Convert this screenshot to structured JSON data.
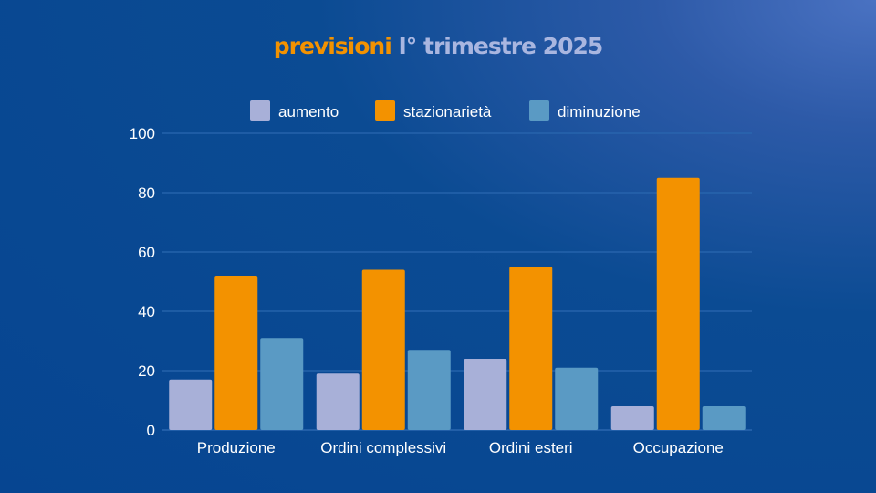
{
  "title": {
    "highlight": "previsioni",
    "rest": "I° trimestre 2025"
  },
  "colors": {
    "aumento": "#a8b0d8",
    "stazionarieta": "#f39200",
    "diminuzione": "#5a9ac4",
    "grid": "#2a67b0",
    "text": "#ffffff"
  },
  "chart_data": {
    "type": "bar",
    "title": "previsioni I° trimestre 2025",
    "categories": [
      "Produzione",
      "Ordini complessivi",
      "Ordini esteri",
      "Occupazione"
    ],
    "series": [
      {
        "name": "aumento",
        "values": [
          17,
          19,
          24,
          8
        ]
      },
      {
        "name": "stazionarietà",
        "values": [
          52,
          54,
          55,
          85
        ]
      },
      {
        "name": "diminuzione",
        "values": [
          31,
          27,
          21,
          8
        ]
      }
    ],
    "ylim": [
      0,
      100
    ],
    "yticks": [
      0,
      20,
      40,
      60,
      80,
      100
    ],
    "grid": true,
    "legend": "top"
  }
}
